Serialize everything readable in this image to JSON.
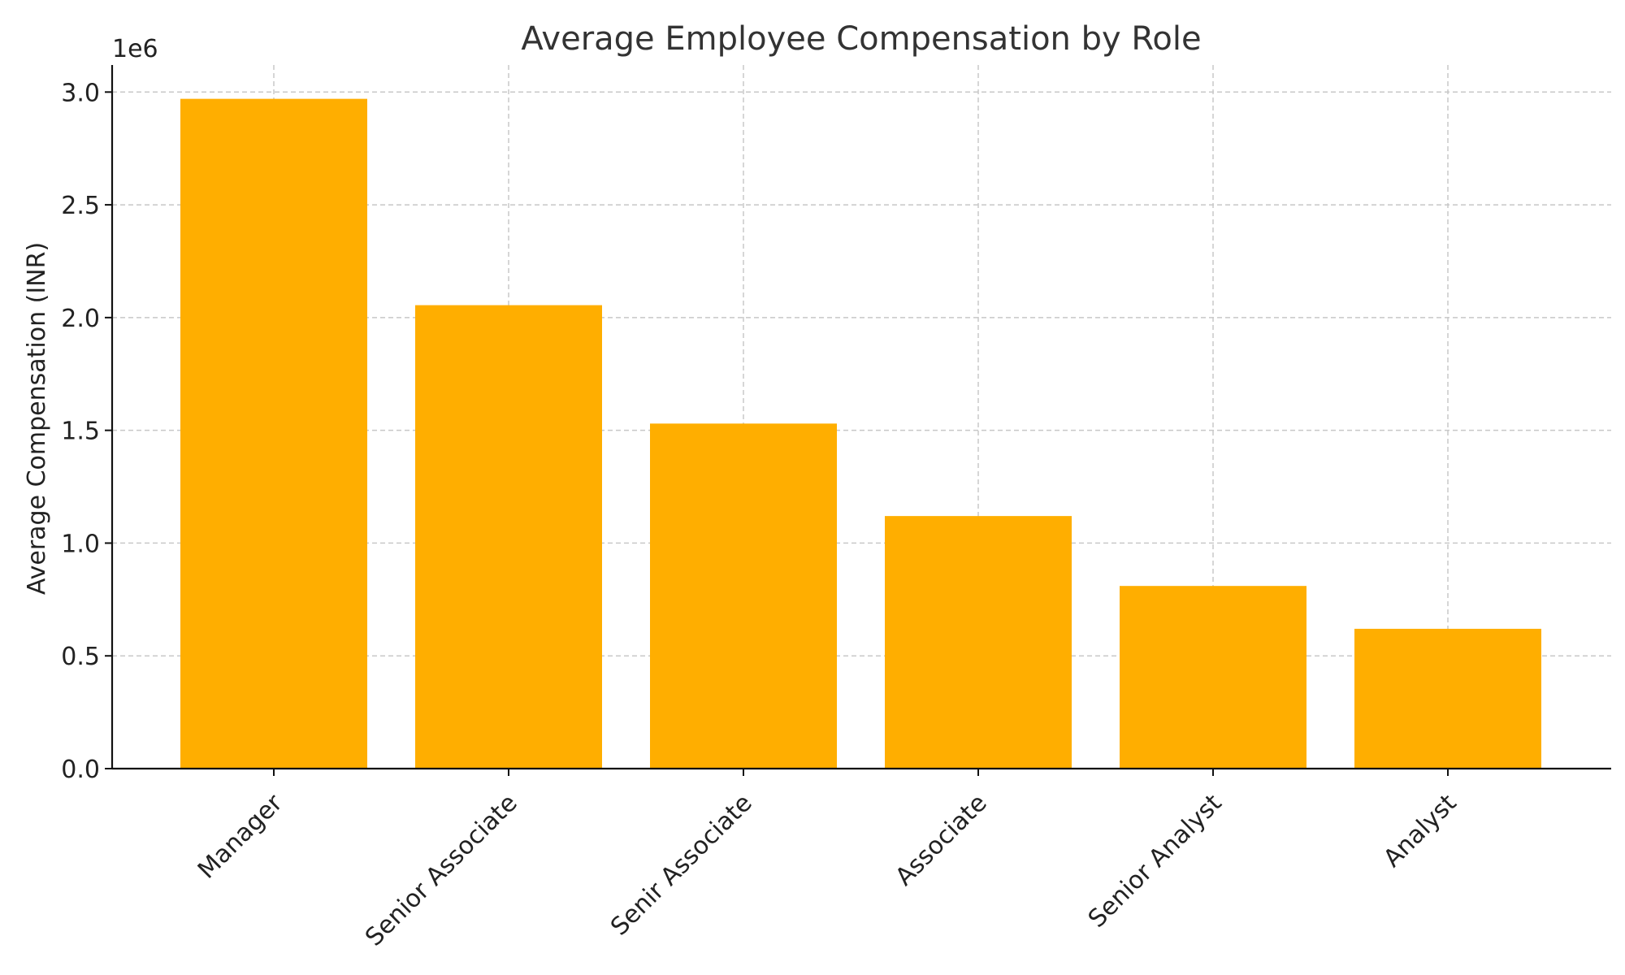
{
  "chart_data": {
    "type": "bar",
    "title": "Average Employee Compensation by Role",
    "xlabel": "",
    "ylabel": "Average Compensation (INR)",
    "y_offset_label": "1e6",
    "categories": [
      "Manager",
      "Senior Associate",
      "Senir Associate",
      "Associate",
      "Senior Analyst",
      "Analyst"
    ],
    "values": [
      2970000,
      2055000,
      1530000,
      1120000,
      810000,
      620000
    ],
    "ylim": [
      0,
      3120000
    ],
    "yticks": [
      0,
      500000,
      1000000,
      1500000,
      2000000,
      2500000,
      3000000
    ],
    "ytick_labels": [
      "0.0",
      "0.5",
      "1.0",
      "1.5",
      "2.0",
      "2.5",
      "3.0"
    ],
    "bar_color": "#FFAE00",
    "grid": true
  }
}
